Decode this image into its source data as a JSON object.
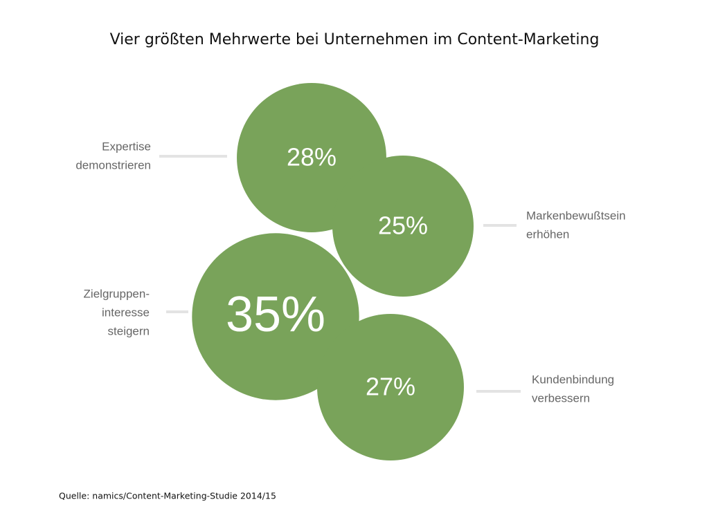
{
  "chart_data": {
    "type": "bubble",
    "title": "Vier größten Mehrwerte bei Unternehmen im Content-Marketing",
    "categories": [
      [
        "Expertise",
        "demonstrieren"
      ],
      [
        "Markenbewußtsein",
        "erhöhen"
      ],
      [
        "Zielgruppen-",
        "interesse",
        "steigern"
      ],
      [
        "Kundenbindung",
        "verbessern"
      ]
    ],
    "values": [
      28,
      25,
      35,
      27
    ],
    "value_labels": [
      "28%",
      "25%",
      "35%",
      "27%"
    ],
    "color": "#79a35a",
    "source": "Quelle: namics/Content-Marketing-Studie 2014/15"
  }
}
